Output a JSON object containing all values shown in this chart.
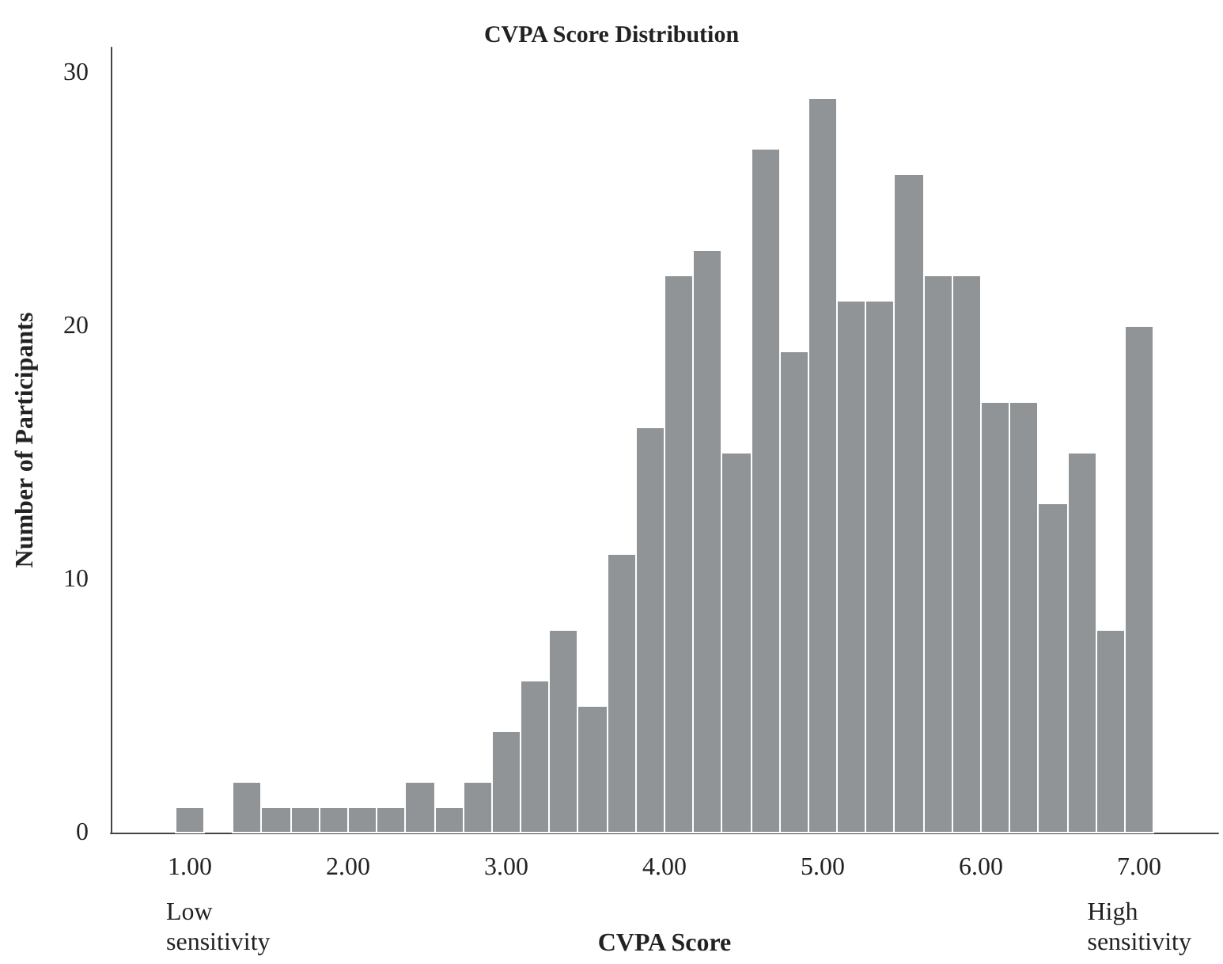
{
  "chart_data": {
    "type": "histogram",
    "title": "CVPA Score Distribution",
    "xlabel": "CVPA Score",
    "ylabel": "Number of Participants",
    "bins": [
      0.91,
      1.09,
      1.27,
      1.45,
      1.64,
      1.82,
      2.0,
      2.18,
      2.36,
      2.55,
      2.73,
      2.91,
      3.09,
      3.27,
      3.45,
      3.64,
      3.82,
      4.0,
      4.18,
      4.36,
      4.55,
      4.73,
      4.91,
      5.09,
      5.27,
      5.45,
      5.64,
      5.82,
      6.0,
      6.18,
      6.36,
      6.55,
      6.73,
      6.91,
      7.09
    ],
    "values": [
      1,
      0,
      2,
      1,
      1,
      1,
      1,
      1,
      2,
      1,
      2,
      4,
      6,
      8,
      5,
      11,
      16,
      22,
      23,
      15,
      27,
      19,
      29,
      21,
      21,
      26,
      22,
      22,
      17,
      17,
      13,
      15,
      8,
      20
    ],
    "color": "#909496",
    "xlim": [
      0.5,
      7.5
    ],
    "xticks": [
      {
        "value": 1,
        "label": "1.00"
      },
      {
        "value": 2,
        "label": "2.00"
      },
      {
        "value": 3,
        "label": "3.00"
      },
      {
        "value": 4,
        "label": "4.00"
      },
      {
        "value": 5,
        "label": "5.00"
      },
      {
        "value": 6,
        "label": "6.00"
      },
      {
        "value": 7,
        "label": "7.00"
      }
    ],
    "ylim": [
      0,
      31
    ],
    "yticks": [
      0,
      10,
      20,
      30
    ],
    "annotations": [
      "Low\nsensitivity",
      "High\nsensitivity"
    ],
    "grid": false
  }
}
